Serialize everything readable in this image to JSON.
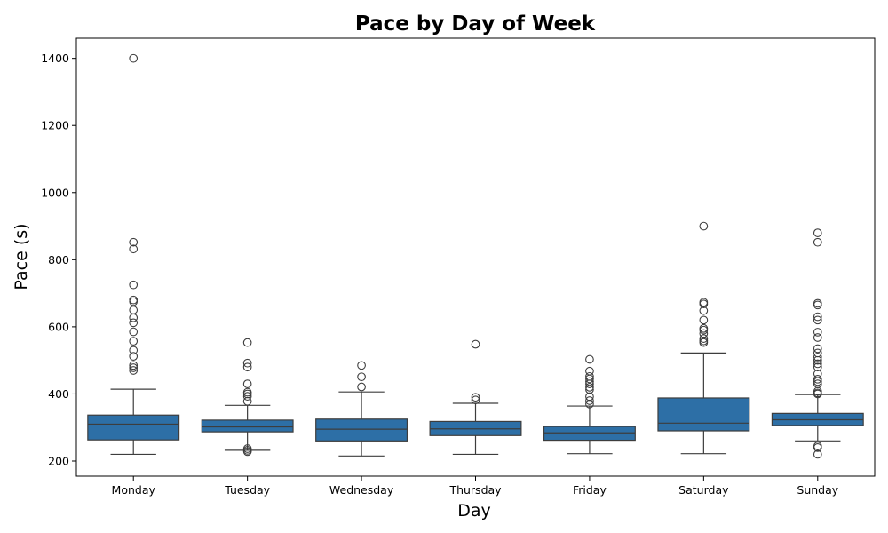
{
  "chart_data": {
    "type": "box",
    "title": "Pace by Day of Week",
    "xlabel": "Day",
    "ylabel": "Pace (s)",
    "ylim": [
      155,
      1460
    ],
    "yticks": [
      200,
      400,
      600,
      800,
      1000,
      1200,
      1400
    ],
    "grid": false,
    "box_color": "#2d6fa6",
    "categories": [
      "Monday",
      "Tuesday",
      "Wednesday",
      "Thursday",
      "Friday",
      "Saturday",
      "Sunday"
    ],
    "boxes": [
      {
        "whisker_low": 220,
        "q1": 263,
        "median": 310,
        "q3": 337,
        "whisker_high": 414,
        "outliers": [
          470,
          478,
          485,
          512,
          530,
          557,
          585,
          612,
          627,
          650,
          675,
          680,
          725,
          832,
          852,
          1400
        ]
      },
      {
        "whisker_low": 232,
        "q1": 287,
        "median": 302,
        "q3": 322,
        "whisker_high": 366,
        "outliers": [
          228,
          232,
          237,
          378,
          393,
          400,
          405,
          430,
          480,
          492,
          553
        ]
      },
      {
        "whisker_low": 215,
        "q1": 260,
        "median": 295,
        "q3": 325,
        "whisker_high": 406,
        "outliers": [
          421,
          451,
          485
        ]
      },
      {
        "whisker_low": 220,
        "q1": 276,
        "median": 296,
        "q3": 318,
        "whisker_high": 372,
        "outliers": [
          382,
          390,
          548
        ]
      },
      {
        "whisker_low": 222,
        "q1": 262,
        "median": 284,
        "q3": 303,
        "whisker_high": 364,
        "outliers": [
          370,
          380,
          392,
          413,
          420,
          430,
          437,
          445,
          452,
          468,
          503
        ]
      },
      {
        "whisker_low": 222,
        "q1": 290,
        "median": 313,
        "q3": 388,
        "whisker_high": 522,
        "outliers": [
          553,
          558,
          565,
          580,
          590,
          595,
          620,
          648,
          668,
          673,
          900
        ]
      },
      {
        "whisker_low": 260,
        "q1": 306,
        "median": 323,
        "q3": 342,
        "whisker_high": 398,
        "outliers": [
          220,
          240,
          245,
          400,
          403,
          408,
          430,
          437,
          444,
          460,
          480,
          490,
          500,
          510,
          522,
          535,
          568,
          584,
          620,
          630,
          665,
          670,
          852,
          880
        ]
      }
    ]
  }
}
